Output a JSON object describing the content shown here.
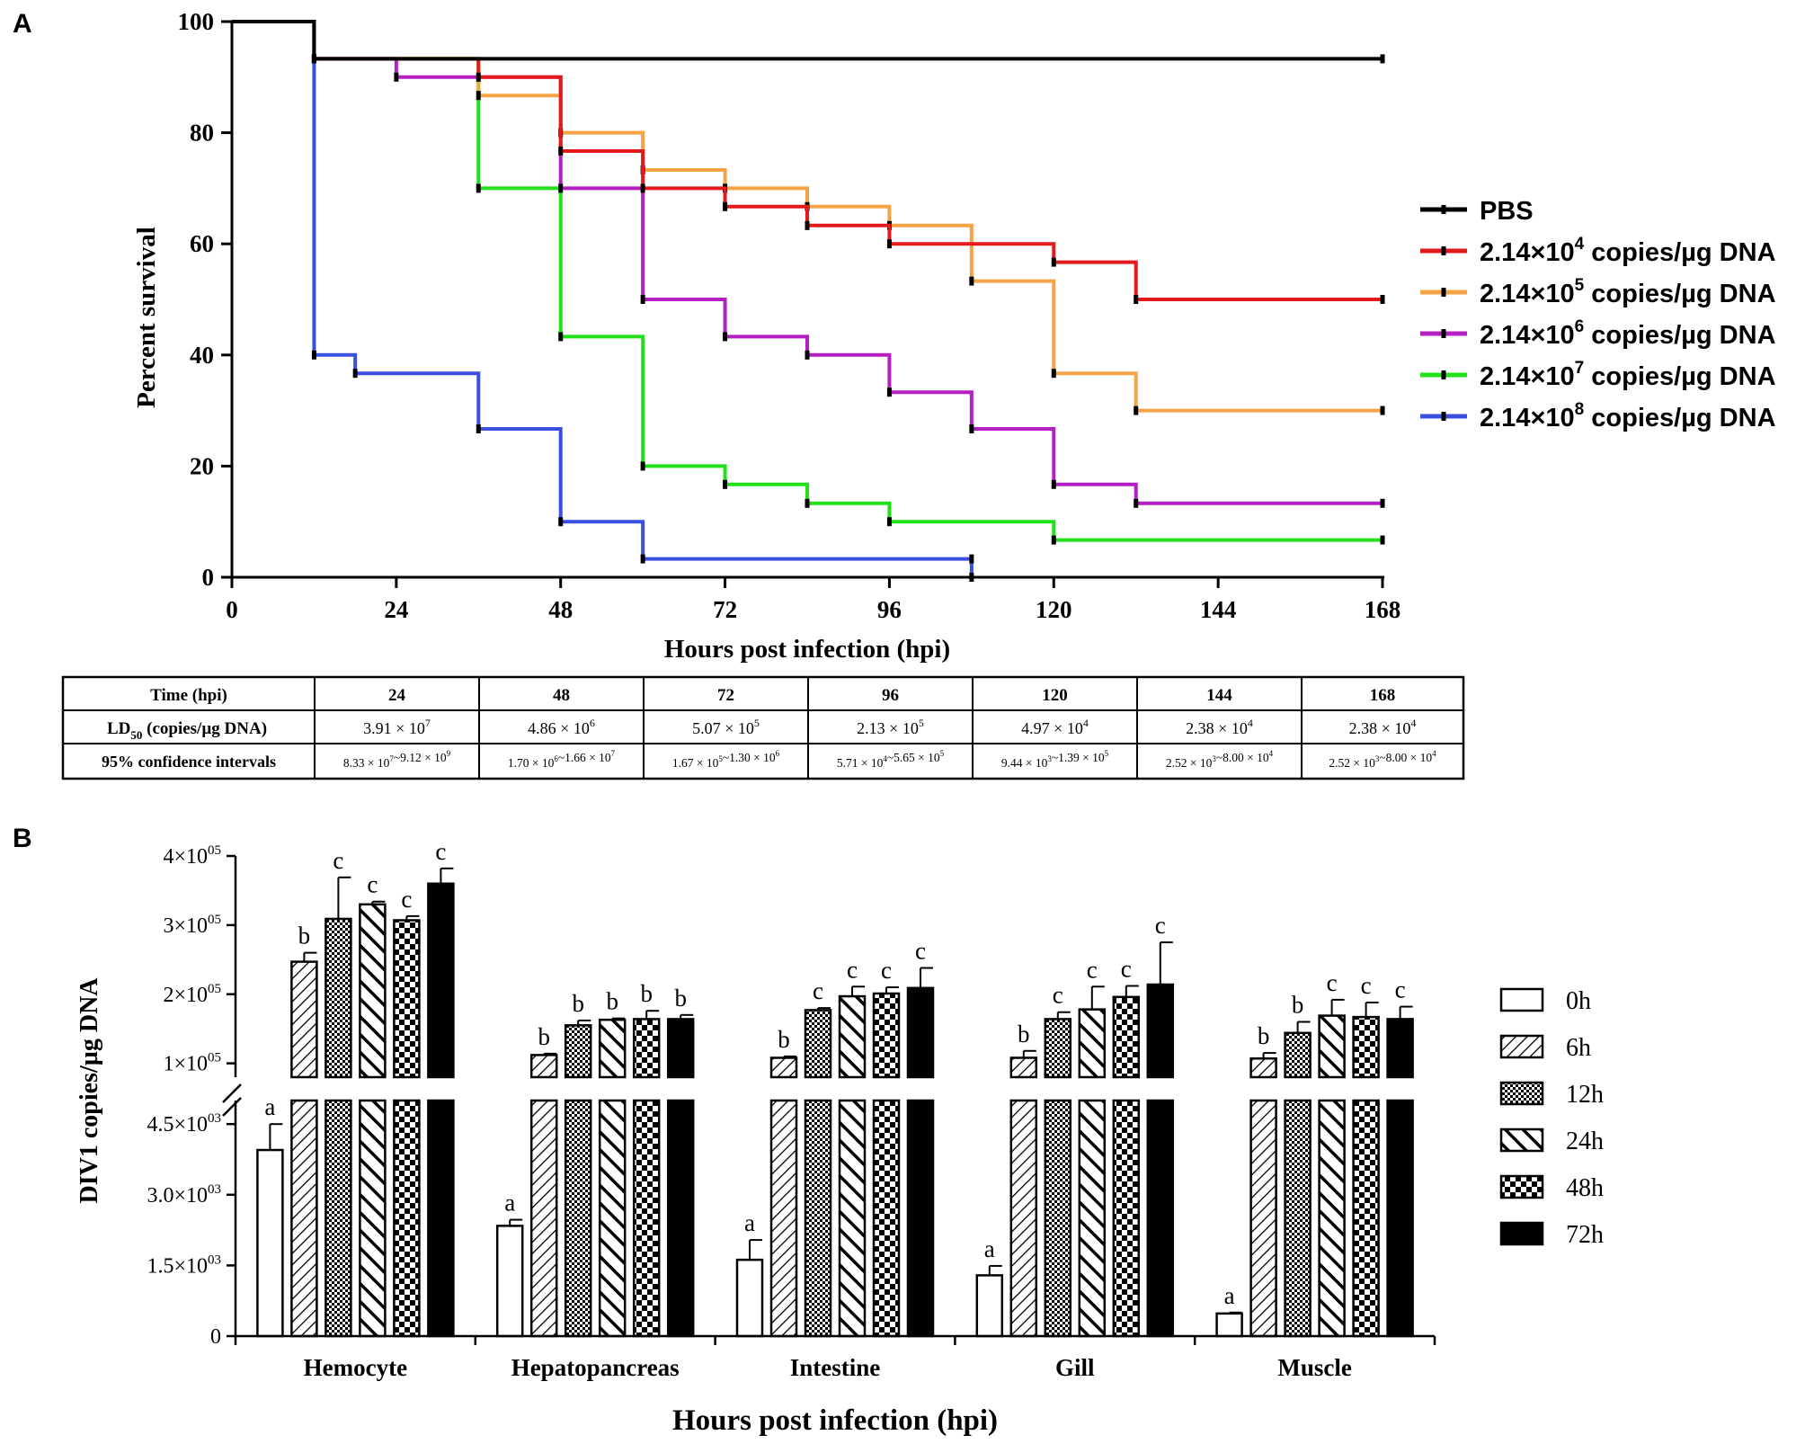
{
  "chart_data": [
    {
      "panel": "A",
      "type": "line",
      "step": true,
      "title": "",
      "xlabel": "Hours post infection (hpi)",
      "ylabel": "Percent survival",
      "xlim": [
        0,
        168
      ],
      "ylim": [
        0,
        100
      ],
      "xticks": [
        "0",
        "24",
        "48",
        "72",
        "96",
        "120",
        "144",
        "168"
      ],
      "yticks": [
        "0",
        "20",
        "40",
        "60",
        "80",
        "100"
      ],
      "legend_position": "right",
      "series": [
        {
          "name": "PBS",
          "label_base": "PBS",
          "label_exp": "",
          "label_tail": "",
          "color": "#000000",
          "points": [
            [
              0,
              100
            ],
            [
              12,
              93.3
            ],
            [
              168,
              93.3
            ]
          ]
        },
        {
          "name": "2.14×10^4 copies/µg DNA",
          "label_base": "2.14×10",
          "label_exp": "4",
          "label_tail": " copies/µg DNA",
          "color": "#e31a1c",
          "points": [
            [
              0,
              100
            ],
            [
              12,
              93.3
            ],
            [
              36,
              90
            ],
            [
              48,
              76.7
            ],
            [
              60,
              70
            ],
            [
              72,
              66.7
            ],
            [
              84,
              63.3
            ],
            [
              96,
              60
            ],
            [
              120,
              56.7
            ],
            [
              132,
              50
            ],
            [
              168,
              50
            ]
          ]
        },
        {
          "name": "2.14×10^5 copies/µg DNA",
          "label_base": "2.14×10",
          "label_exp": "5",
          "label_tail": " copies/µg DNA",
          "color": "#f5a345",
          "points": [
            [
              0,
              100
            ],
            [
              12,
              93.3
            ],
            [
              36,
              86.7
            ],
            [
              48,
              80
            ],
            [
              60,
              73.3
            ],
            [
              72,
              70
            ],
            [
              84,
              66.7
            ],
            [
              96,
              63.3
            ],
            [
              108,
              53.3
            ],
            [
              120,
              36.7
            ],
            [
              132,
              30
            ],
            [
              168,
              30
            ]
          ]
        },
        {
          "name": "2.14×10^6 copies/µg DNA",
          "label_base": "2.14×10",
          "label_exp": "6",
          "label_tail": " copies/µg DNA",
          "color": "#b41fc2",
          "points": [
            [
              0,
              100
            ],
            [
              12,
              93.3
            ],
            [
              24,
              90
            ],
            [
              48,
              70
            ],
            [
              60,
              50
            ],
            [
              72,
              43.3
            ],
            [
              84,
              40
            ],
            [
              96,
              33.3
            ],
            [
              108,
              26.7
            ],
            [
              120,
              16.7
            ],
            [
              132,
              13.3
            ],
            [
              168,
              13.3
            ]
          ]
        },
        {
          "name": "2.14×10^7 copies/µg DNA",
          "label_base": "2.14×10",
          "label_exp": "7",
          "label_tail": " copies/µg DNA",
          "color": "#22e01a",
          "points": [
            [
              0,
              100
            ],
            [
              12,
              93.3
            ],
            [
              36,
              70
            ],
            [
              48,
              43.3
            ],
            [
              60,
              20
            ],
            [
              72,
              16.7
            ],
            [
              84,
              13.3
            ],
            [
              96,
              10
            ],
            [
              120,
              6.7
            ],
            [
              168,
              6.7
            ]
          ]
        },
        {
          "name": "2.14×10^8 copies/µg DNA",
          "label_base": "2.14×10",
          "label_exp": "8",
          "label_tail": " copies/µg DNA",
          "color": "#3a4fe0",
          "points": [
            [
              0,
              100
            ],
            [
              12,
              40
            ],
            [
              18,
              36.7
            ],
            [
              36,
              26.7
            ],
            [
              48,
              10
            ],
            [
              60,
              3.3
            ],
            [
              108,
              3.3
            ],
            [
              108,
              0
            ]
          ]
        }
      ]
    },
    {
      "panel": "A-table",
      "type": "table",
      "header": [
        "Time (hpi)",
        "24",
        "48",
        "72",
        "96",
        "120",
        "144",
        "168"
      ],
      "rows": [
        {
          "label_base": "LD",
          "label_sub": "50",
          "label_tail": " (copies/µg DNA)",
          "cells": [
            [
              "3.91 × 10",
              "7"
            ],
            [
              "4.86 × 10",
              "6"
            ],
            [
              "5.07 × 10",
              "5"
            ],
            [
              "2.13 × 10",
              "5"
            ],
            [
              "4.97 × 10",
              "4"
            ],
            [
              "2.38 × 10",
              "4"
            ],
            [
              "2.38 × 10",
              "4"
            ]
          ]
        },
        {
          "label_base": "95% confidence intervals",
          "label_sub": "",
          "label_tail": "",
          "cells": [
            [
              [
                "8.33 × 10",
                "7"
              ],
              [
                "~9.12 × 10",
                "9"
              ]
            ],
            [
              [
                "1.70 × 10",
                "6"
              ],
              [
                "~1.66 × 10",
                "7"
              ]
            ],
            [
              [
                "1.67 × 10",
                "5"
              ],
              [
                "~1.30 × 10",
                "6"
              ]
            ],
            [
              [
                "5.71 × 10",
                "4"
              ],
              [
                "~5.65 × 10",
                "5"
              ]
            ],
            [
              [
                "9.44 × 10",
                "3"
              ],
              [
                "~1.39 × 10",
                "5"
              ]
            ],
            [
              [
                "2.52 × 10",
                "3"
              ],
              [
                "~8.00 × 10",
                "4"
              ]
            ],
            [
              [
                "2.52 × 10",
                "3"
              ],
              [
                "~8.00 × 10",
                "4"
              ]
            ]
          ]
        }
      ]
    },
    {
      "panel": "B",
      "type": "bar",
      "title": "",
      "xlabel": "Hours post infection (hpi)",
      "ylabel": "DIV1 copies/µg DNA",
      "axis_break": true,
      "lower_ylim": [
        0,
        5000
      ],
      "upper_ylim": [
        80000,
        400000
      ],
      "lower_ticks": [
        {
          "v": 0,
          "base": "0",
          "exp": ""
        },
        {
          "v": 1500,
          "base": "1.5×10",
          "exp": "03"
        },
        {
          "v": 3000,
          "base": "3.0×10",
          "exp": "03"
        },
        {
          "v": 4500,
          "base": "4.5×10",
          "exp": "03"
        }
      ],
      "upper_ticks": [
        {
          "v": 100000,
          "base": "1×10",
          "exp": "05"
        },
        {
          "v": 200000,
          "base": "2×10",
          "exp": "05"
        },
        {
          "v": 300000,
          "base": "3×10",
          "exp": "05"
        },
        {
          "v": 400000,
          "base": "4×10",
          "exp": "05"
        }
      ],
      "categories": [
        "Hemocyte",
        "Hepatopancreas",
        "Intestine",
        "Gill",
        "Muscle"
      ],
      "legend_position": "right",
      "series": [
        {
          "name": "0h",
          "pattern": "empty",
          "values": [
            3950,
            2340,
            1620,
            1290,
            480
          ],
          "errors": [
            550,
            130,
            420,
            200,
            20
          ],
          "letters": [
            "a",
            "a",
            "a",
            "a",
            "a"
          ]
        },
        {
          "name": "6h",
          "pattern": "diag-thin",
          "values": [
            247000,
            112000,
            108000,
            108000,
            107000
          ],
          "errors": [
            13000,
            2000,
            2000,
            10000,
            8000
          ],
          "letters": [
            "b",
            "b",
            "b",
            "b",
            "b"
          ]
        },
        {
          "name": "12h",
          "pattern": "dense-checker",
          "values": [
            309000,
            155000,
            177000,
            164000,
            144000
          ],
          "errors": [
            60000,
            7000,
            3000,
            10000,
            16000
          ],
          "letters": [
            "c",
            "b",
            "c",
            "c",
            "b"
          ]
        },
        {
          "name": "24h",
          "pattern": "diag-thick",
          "values": [
            330000,
            163000,
            197000,
            178000,
            169000
          ],
          "errors": [
            4000,
            2000,
            14000,
            33000,
            23000
          ],
          "letters": [
            "c",
            "b",
            "c",
            "c",
            "c"
          ]
        },
        {
          "name": "48h",
          "pattern": "big-checker",
          "values": [
            307000,
            164000,
            201000,
            196000,
            167000
          ],
          "errors": [
            6000,
            12000,
            9000,
            16000,
            21000
          ],
          "letters": [
            "c",
            "b",
            "c",
            "c",
            "c"
          ]
        },
        {
          "name": "72h",
          "pattern": "solid",
          "values": [
            360000,
            164000,
            209000,
            214000,
            164000
          ],
          "errors": [
            22000,
            6000,
            29000,
            61000,
            18000
          ],
          "letters": [
            "c",
            "b",
            "c",
            "c",
            "c"
          ]
        }
      ]
    }
  ],
  "panels": {
    "a_label": "A",
    "b_label": "B"
  }
}
